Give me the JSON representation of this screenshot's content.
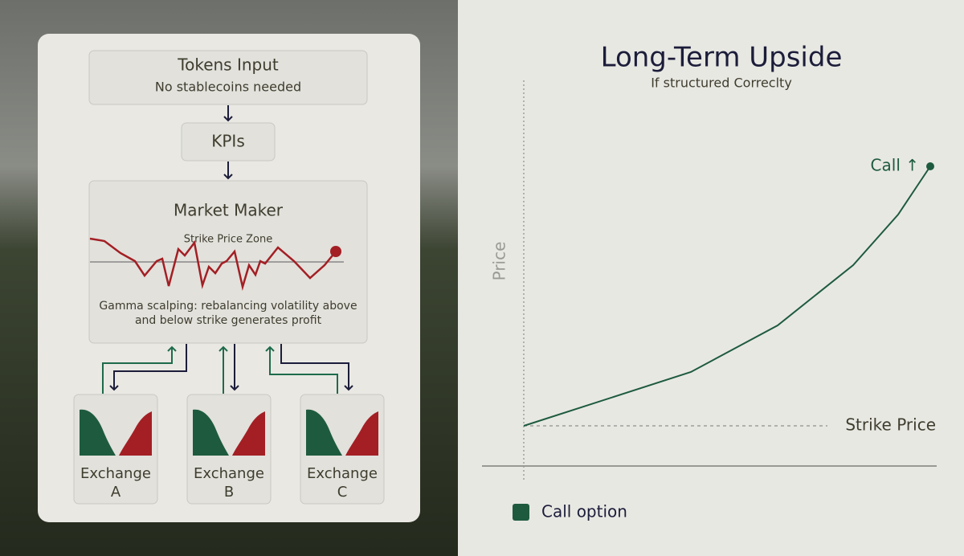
{
  "diagram": {
    "tokens_input": {
      "title": "Tokens Input",
      "subtitle": "No stablecoins needed"
    },
    "kpis": {
      "title": "KPIs"
    },
    "market_maker": {
      "title": "Market Maker",
      "zone_label": "Strike Price Zone",
      "caption": [
        "Gamma scalping: rebalancing volatility above",
        "and below strike generates profit"
      ]
    },
    "exchanges": [
      {
        "label": [
          "Exchange",
          "A"
        ]
      },
      {
        "label": [
          "Exchange",
          "B"
        ]
      },
      {
        "label": [
          "Exchange",
          "C"
        ]
      }
    ]
  },
  "chart": {
    "title": "Long-Term Upside",
    "subtitle": "If structured Correclty",
    "y_label": "Price",
    "strike_label": "Strike Price",
    "point_label": "Call ↑",
    "legend": "Call option"
  }
}
